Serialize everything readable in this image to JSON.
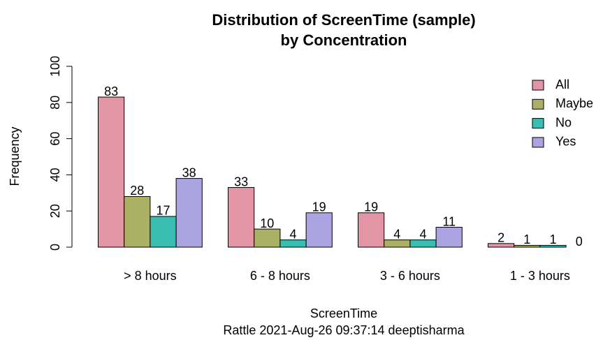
{
  "chart_data": {
    "type": "bar",
    "title": [
      "Distribution of ScreenTime (sample)",
      "by Concentration"
    ],
    "xlabel": "ScreenTime",
    "caption": "Rattle 2021-Aug-26 09:37:14 deeptisharma",
    "ylabel": "Frequency",
    "categories": [
      "> 8 hours",
      "6 - 8 hours",
      "3 - 6 hours",
      "1 - 3 hours"
    ],
    "series": [
      {
        "name": "All",
        "color": "#e495a5",
        "values": [
          83,
          33,
          19,
          2
        ]
      },
      {
        "name": "Maybe",
        "color": "#abb065",
        "values": [
          28,
          10,
          4,
          1
        ]
      },
      {
        "name": "No",
        "color": "#39beb1",
        "values": [
          17,
          4,
          4,
          1
        ]
      },
      {
        "name": "Yes",
        "color": "#aca4e2",
        "values": [
          38,
          19,
          11,
          0
        ]
      }
    ],
    "ylim": [
      0,
      100
    ],
    "yticks": [
      0,
      20,
      40,
      60,
      80,
      100
    ],
    "grid": false,
    "legend": "topright"
  }
}
